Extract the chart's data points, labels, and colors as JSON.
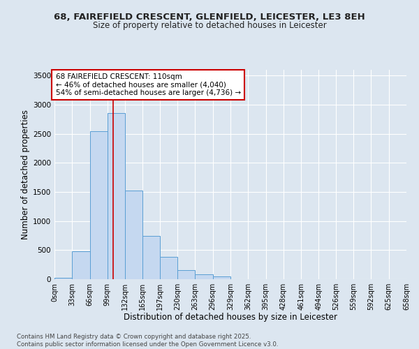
{
  "title_line1": "68, FAIREFIELD CRESCENT, GLENFIELD, LEICESTER, LE3 8EH",
  "title_line2": "Size of property relative to detached houses in Leicester",
  "xlabel": "Distribution of detached houses by size in Leicester",
  "ylabel": "Number of detached properties",
  "bar_color": "#c5d8f0",
  "bar_edge_color": "#5a9fd4",
  "fig_bg_color": "#dce6f0",
  "plot_bg_color": "#dce6f0",
  "grid_color": "#ffffff",
  "annotation_text": "68 FAIREFIELD CRESCENT: 110sqm\n← 46% of detached houses are smaller (4,040)\n54% of semi-detached houses are larger (4,736) →",
  "annotation_box_facecolor": "#ffffff",
  "annotation_box_edgecolor": "#cc0000",
  "vline_x": 110,
  "vline_color": "#cc0000",
  "bin_edges": [
    0,
    33,
    66,
    99,
    132,
    165,
    197,
    230,
    263,
    296,
    329,
    362,
    395,
    428,
    461,
    494,
    526,
    559,
    592,
    625,
    658
  ],
  "bar_heights": [
    20,
    480,
    2540,
    2860,
    1530,
    750,
    390,
    155,
    80,
    45,
    0,
    0,
    0,
    0,
    0,
    0,
    0,
    0,
    0,
    0
  ],
  "tick_labels": [
    "0sqm",
    "33sqm",
    "66sqm",
    "99sqm",
    "132sqm",
    "165sqm",
    "197sqm",
    "230sqm",
    "263sqm",
    "296sqm",
    "329sqm",
    "362sqm",
    "395sqm",
    "428sqm",
    "461sqm",
    "494sqm",
    "526sqm",
    "559sqm",
    "592sqm",
    "625sqm",
    "658sqm"
  ],
  "ylim": [
    0,
    3600
  ],
  "yticks": [
    0,
    500,
    1000,
    1500,
    2000,
    2500,
    3000,
    3500
  ],
  "copyright_text": "Contains HM Land Registry data © Crown copyright and database right 2025.\nContains public sector information licensed under the Open Government Licence v3.0."
}
